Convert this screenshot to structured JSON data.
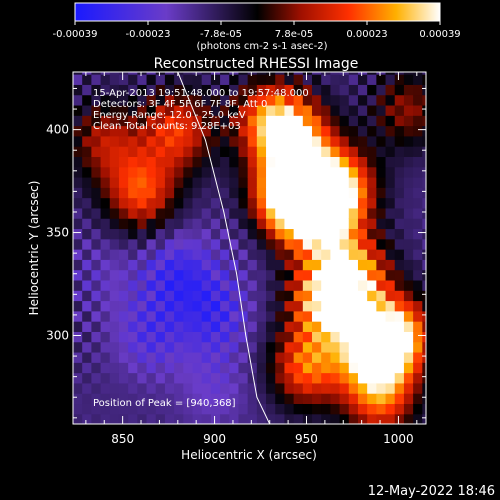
{
  "chart_data": {
    "type": "heatmap",
    "title": "Reconstructed RHESSI Image",
    "xlabel": "Heliocentric X (arcsec)",
    "ylabel": "Heliocentric Y (arcsec)",
    "xlim": [
      823,
      1015
    ],
    "ylim": [
      257,
      428
    ],
    "xticks": [
      850,
      900,
      950,
      1000
    ],
    "yticks": [
      300,
      350,
      400
    ],
    "colorbar": {
      "ticks": [
        "-0.00039",
        "-0.00023",
        "-7.8e-05",
        "7.8e-05",
        "0.00023",
        "0.00039"
      ],
      "unit_label": "(photons cm-2 s-1 asec-2)",
      "range": [
        -0.00039,
        0.00039
      ]
    },
    "annotations": {
      "time_range": "15-Apr-2013 19:51:48.000 to 19:57:48.000",
      "detectors": "Detectors: 3F 4F 5F 6F 7F 8F, Att 0",
      "energy_range": "Energy Range: 12.0 - 25.0 keV",
      "clean": "Clean    Total counts: 9.28E+03",
      "peak": "Position of Peak = [940,368]"
    },
    "peak_position": [
      940,
      368
    ],
    "limb_arc": [
      [
        880,
        428
      ],
      [
        895,
        395
      ],
      [
        905,
        360
      ],
      [
        912,
        330
      ],
      [
        917,
        300
      ],
      [
        923,
        270
      ],
      [
        930,
        257
      ]
    ],
    "flux_cells_comment_free": true,
    "emission_regions": [
      {
        "x": 940,
        "y": 368,
        "level": 0.00039
      },
      {
        "x": 955,
        "y": 360,
        "level": 0.00033
      },
      {
        "x": 968,
        "y": 372,
        "level": 0.0003
      },
      {
        "x": 945,
        "y": 395,
        "level": 0.00025
      },
      {
        "x": 930,
        "y": 405,
        "level": 0.00022
      },
      {
        "x": 960,
        "y": 318,
        "level": 0.0003
      },
      {
        "x": 975,
        "y": 330,
        "level": 0.00028
      },
      {
        "x": 985,
        "y": 295,
        "level": 0.0003
      },
      {
        "x": 1000,
        "y": 300,
        "level": 0.00027
      },
      {
        "x": 950,
        "y": 285,
        "level": 0.00022
      },
      {
        "x": 880,
        "y": 400,
        "level": 0.00018
      },
      {
        "x": 860,
        "y": 370,
        "level": 0.0002
      },
      {
        "x": 840,
        "y": 395,
        "level": 0.0001
      },
      {
        "x": 1005,
        "y": 410,
        "level": 8e-05
      },
      {
        "x": 990,
        "y": 270,
        "level": 0.0002
      }
    ],
    "depressions": [
      {
        "x": 880,
        "y": 330,
        "level": -0.0003
      },
      {
        "x": 865,
        "y": 300,
        "level": -0.00025
      },
      {
        "x": 900,
        "y": 310,
        "level": -0.00028
      },
      {
        "x": 840,
        "y": 330,
        "level": -0.00018
      },
      {
        "x": 900,
        "y": 275,
        "level": -0.0002
      },
      {
        "x": 915,
        "y": 345,
        "level": -0.00015
      }
    ]
  },
  "footer": {
    "date": "12-May-2022 18:46"
  }
}
